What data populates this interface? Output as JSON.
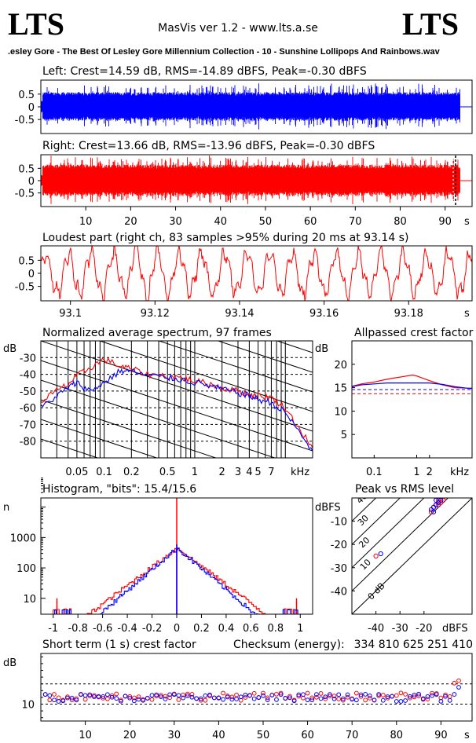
{
  "header": {
    "logo_left": "LTS",
    "logo_right": "LTS",
    "app_title": "MasVis ver 1.2 - www.lts.a.se",
    "file_name": ".esley Gore - The Best Of Lesley Gore Millennium Collection - 10 - Sunshine Lollipops And Rainbows.wav"
  },
  "colors": {
    "left": "#0000ff",
    "right": "#ff0000",
    "axis": "#000000"
  },
  "chart_data": [
    {
      "id": "left_waveform",
      "type": "area",
      "title": "Left: Crest=14.59 dB, RMS=-14.89 dBFS, Peak=-0.30 dBFS",
      "xlabel": "",
      "ylabel": "",
      "xlim": [
        0,
        96
      ],
      "ylim": [
        -1,
        1
      ],
      "yticks": [
        "0.5",
        "0",
        "-0.5"
      ],
      "series": [
        {
          "name": "",
          "color": "#0000ff",
          "end_s": 93.3,
          "peak": 1.0,
          "typical": 0.55
        }
      ]
    },
    {
      "id": "right_waveform",
      "type": "area",
      "title": "Right: Crest=13.66 dB, RMS=-13.96 dBFS, Peak=-0.30 dBFS",
      "xlabel": "s",
      "ylabel": "",
      "xlim": [
        0,
        96
      ],
      "ylim": [
        -1,
        1
      ],
      "yticks": [
        "0.5",
        "0",
        "-0.5"
      ],
      "xticks": [
        "10",
        "20",
        "30",
        "40",
        "50",
        "60",
        "70",
        "80",
        "90"
      ],
      "series": [
        {
          "name": "",
          "color": "#ff0000",
          "end_s": 93.3,
          "peak": 1.0,
          "typical": 0.62
        }
      ]
    },
    {
      "id": "loudest_part",
      "type": "line",
      "title": "Loudest part (right ch, 83 samples >95% during 20 ms at 93.14 s)",
      "xlabel": "s",
      "ylabel": "",
      "xlim": [
        93.093,
        93.195
      ],
      "ylim": [
        -1,
        1
      ],
      "yticks": [
        "0.5",
        "0",
        "-0.5"
      ],
      "xticks": [
        "93.1",
        "93.12",
        "93.14",
        "93.16",
        "93.18"
      ],
      "series": [
        {
          "name": "",
          "color": "#ff0000"
        }
      ]
    },
    {
      "id": "avg_spectrum",
      "type": "line",
      "title": "Normalized average spectrum, 97 frames",
      "xlabel": "kHz",
      "ylabel": "dB",
      "xscale": "log",
      "xlim": [
        0.02,
        20
      ],
      "ylim": [
        -90,
        -20
      ],
      "yticks": [
        "-30",
        "-40",
        "-50",
        "-60",
        "-70",
        "-80"
      ],
      "xticks": [
        "0.05",
        "0.1",
        "0.2",
        "0.5",
        "1",
        "2",
        "3",
        "4",
        "5",
        "7"
      ],
      "series": [
        {
          "name": "",
          "color": "#ff0000",
          "x": [
            0.02,
            0.03,
            0.04,
            0.05,
            0.07,
            0.1,
            0.15,
            0.2,
            0.3,
            0.5,
            0.7,
            1,
            1.5,
            2,
            3,
            4,
            5,
            7,
            10,
            14,
            20
          ],
          "y": [
            -56,
            -50,
            -46,
            -41,
            -36,
            -31,
            -35,
            -37,
            -40,
            -41,
            -42,
            -44,
            -46,
            -48,
            -50,
            -52,
            -53,
            -54,
            -60,
            -72,
            -84
          ]
        },
        {
          "name": "",
          "color": "#0000ff",
          "x": [
            0.02,
            0.03,
            0.04,
            0.05,
            0.07,
            0.1,
            0.15,
            0.2,
            0.3,
            0.5,
            0.7,
            1,
            1.5,
            2,
            3,
            4,
            5,
            7,
            10,
            14,
            20
          ],
          "y": [
            -60,
            -53,
            -48,
            -45,
            -50,
            -45,
            -38,
            -38,
            -41,
            -42,
            -43,
            -45,
            -47,
            -49,
            -51,
            -53,
            -55,
            -57,
            -63,
            -74,
            -86
          ]
        }
      ]
    },
    {
      "id": "allpassed_crest",
      "type": "line",
      "title": "Allpassed crest factor",
      "xlabel": "kHz",
      "ylabel": "dB",
      "xscale": "log",
      "xlim": [
        0.03,
        20
      ],
      "ylim": [
        0,
        25
      ],
      "yticks": [
        "20",
        "15",
        "10",
        "5"
      ],
      "xticks": [
        "0.1",
        "1",
        "2"
      ],
      "reference_lines": [
        {
          "color": "#0000ff",
          "y": 14.6
        },
        {
          "color": "#ff0000",
          "y": 13.7
        }
      ],
      "series": [
        {
          "name": "",
          "color": "#ff0000",
          "x": [
            0.03,
            0.05,
            0.1,
            0.2,
            0.5,
            0.8,
            1,
            2,
            4,
            8,
            15,
            20
          ],
          "y": [
            15.3,
            15.8,
            16.2,
            16.8,
            17.4,
            17.7,
            17.5,
            16.5,
            15.6,
            15.0,
            14.9,
            14.9
          ]
        },
        {
          "name": "",
          "color": "#0000ff",
          "x": [
            0.03,
            0.05,
            0.1,
            0.2,
            0.5,
            0.8,
            1,
            2,
            4,
            8,
            15,
            20
          ],
          "y": [
            15.2,
            15.6,
            15.8,
            16.0,
            16.0,
            16.0,
            16.0,
            16.0,
            15.7,
            15.2,
            14.9,
            14.8
          ]
        }
      ]
    },
    {
      "id": "histogram",
      "type": "line",
      "title": "Histogram, \"bits\": 15.4/15.6",
      "xlabel": "",
      "ylabel": "n",
      "yscale": "log",
      "xlim": [
        -1.1,
        1.1
      ],
      "ylim": [
        3,
        20000
      ],
      "yticks": [
        "1000",
        "100",
        "10"
      ],
      "xticks": [
        "-1",
        "-0.8",
        "-0.6",
        "-0.4",
        "-0.2",
        "0",
        "0.2",
        "0.4",
        "0.6",
        "0.8",
        "1"
      ],
      "series": [
        {
          "name": "",
          "color": "#ff0000",
          "spike_at_zero": 20000,
          "edge_spikes": 10
        },
        {
          "name": "",
          "color": "#0000ff",
          "spike_at_zero": 600,
          "edge_spikes": 0
        }
      ]
    },
    {
      "id": "peak_vs_rms",
      "type": "scatter",
      "title": "Peak vs RMS level",
      "xlabel": "dBFS",
      "ylabel": "dBFS",
      "xlim": [
        -50,
        0
      ],
      "ylim": [
        -50,
        0
      ],
      "yticks": [
        "-10",
        "-20",
        "-30",
        "-40"
      ],
      "xticks": [
        "-40",
        "-30",
        "-20"
      ],
      "diagonal_labels": [
        "40",
        "30",
        "20",
        "10",
        "0 dB"
      ],
      "series": [
        {
          "name": "",
          "color": "#ff0000",
          "x": [
            -15,
            -14,
            -13,
            -16,
            -14,
            -13,
            -12,
            -15,
            -40,
            -17,
            -14
          ],
          "y": [
            -3,
            -2,
            -1,
            -4,
            -1,
            -2,
            -1,
            -3,
            -25,
            -6,
            -3
          ]
        },
        {
          "name": "",
          "color": "#0000ff",
          "x": [
            -15,
            -14,
            -16,
            -13,
            -17,
            -38,
            -15,
            -16
          ],
          "y": [
            -3,
            -2,
            -4,
            -1,
            -5,
            -24,
            -1,
            -6
          ]
        }
      ]
    },
    {
      "id": "short_term_crest",
      "type": "scatter",
      "title": "Short term (1 s) crest factor",
      "checksum_label": "Checksum (energy):",
      "checksum_value": "334 810 625 251 410",
      "xlabel": "s",
      "ylabel": "dB",
      "xlim": [
        0,
        97
      ],
      "ylim": [
        5,
        25
      ],
      "yticks": [
        "10"
      ],
      "xticks": [
        "10",
        "20",
        "30",
        "40",
        "50",
        "60",
        "70",
        "80",
        "90"
      ],
      "reference_lines": [
        {
          "y": 10
        },
        {
          "y": 16
        }
      ]
    }
  ]
}
